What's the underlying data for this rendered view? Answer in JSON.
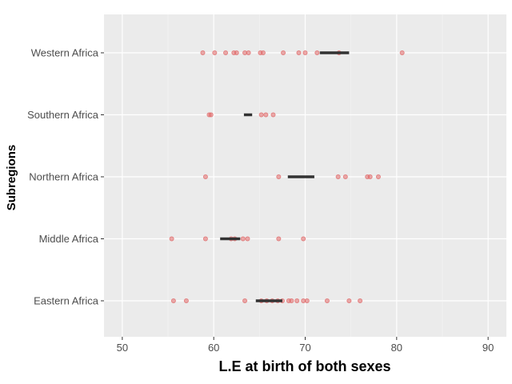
{
  "chart_data": {
    "type": "scatter",
    "xlabel": "L.E at birth of both sexes",
    "ylabel": "Subregions",
    "xlim": [
      48,
      92
    ],
    "x_ticks": [
      50,
      60,
      70,
      80,
      90
    ],
    "grid": true,
    "categories": [
      "Eastern Africa",
      "Middle Africa",
      "Northern Africa",
      "Southern Africa",
      "Western Africa"
    ],
    "point_color": "#e06666",
    "median_color": "#333333",
    "panel_background": "#ebebeb",
    "series": [
      {
        "category": "Eastern Africa",
        "points": [
          55.6,
          57.0,
          63.4,
          65.2,
          65.8,
          66.4,
          67.0,
          67.5,
          68.2,
          68.5,
          69.1,
          69.8,
          70.2,
          72.4,
          74.8,
          76.0
        ],
        "median_range": [
          64.6,
          67.5
        ]
      },
      {
        "category": "Middle Africa",
        "points": [
          55.4,
          59.1,
          61.9,
          62.3,
          63.2,
          63.7,
          67.1,
          69.8
        ],
        "median_range": [
          60.7,
          62.9
        ]
      },
      {
        "category": "Northern Africa",
        "points": [
          59.1,
          67.1,
          73.6,
          74.4,
          76.8,
          77.1,
          78.0
        ],
        "median_range": [
          68.1,
          71.0
        ]
      },
      {
        "category": "Southern Africa",
        "points": [
          59.5,
          59.7,
          65.2,
          65.7,
          66.5
        ],
        "median_range": [
          63.3,
          64.2
        ]
      },
      {
        "category": "Western Africa",
        "points": [
          58.8,
          60.1,
          61.3,
          62.2,
          62.5,
          63.4,
          63.8,
          65.1,
          65.4,
          67.6,
          69.3,
          70.0,
          71.3,
          73.7,
          80.6
        ],
        "median_range": [
          71.6,
          74.8
        ]
      }
    ]
  }
}
